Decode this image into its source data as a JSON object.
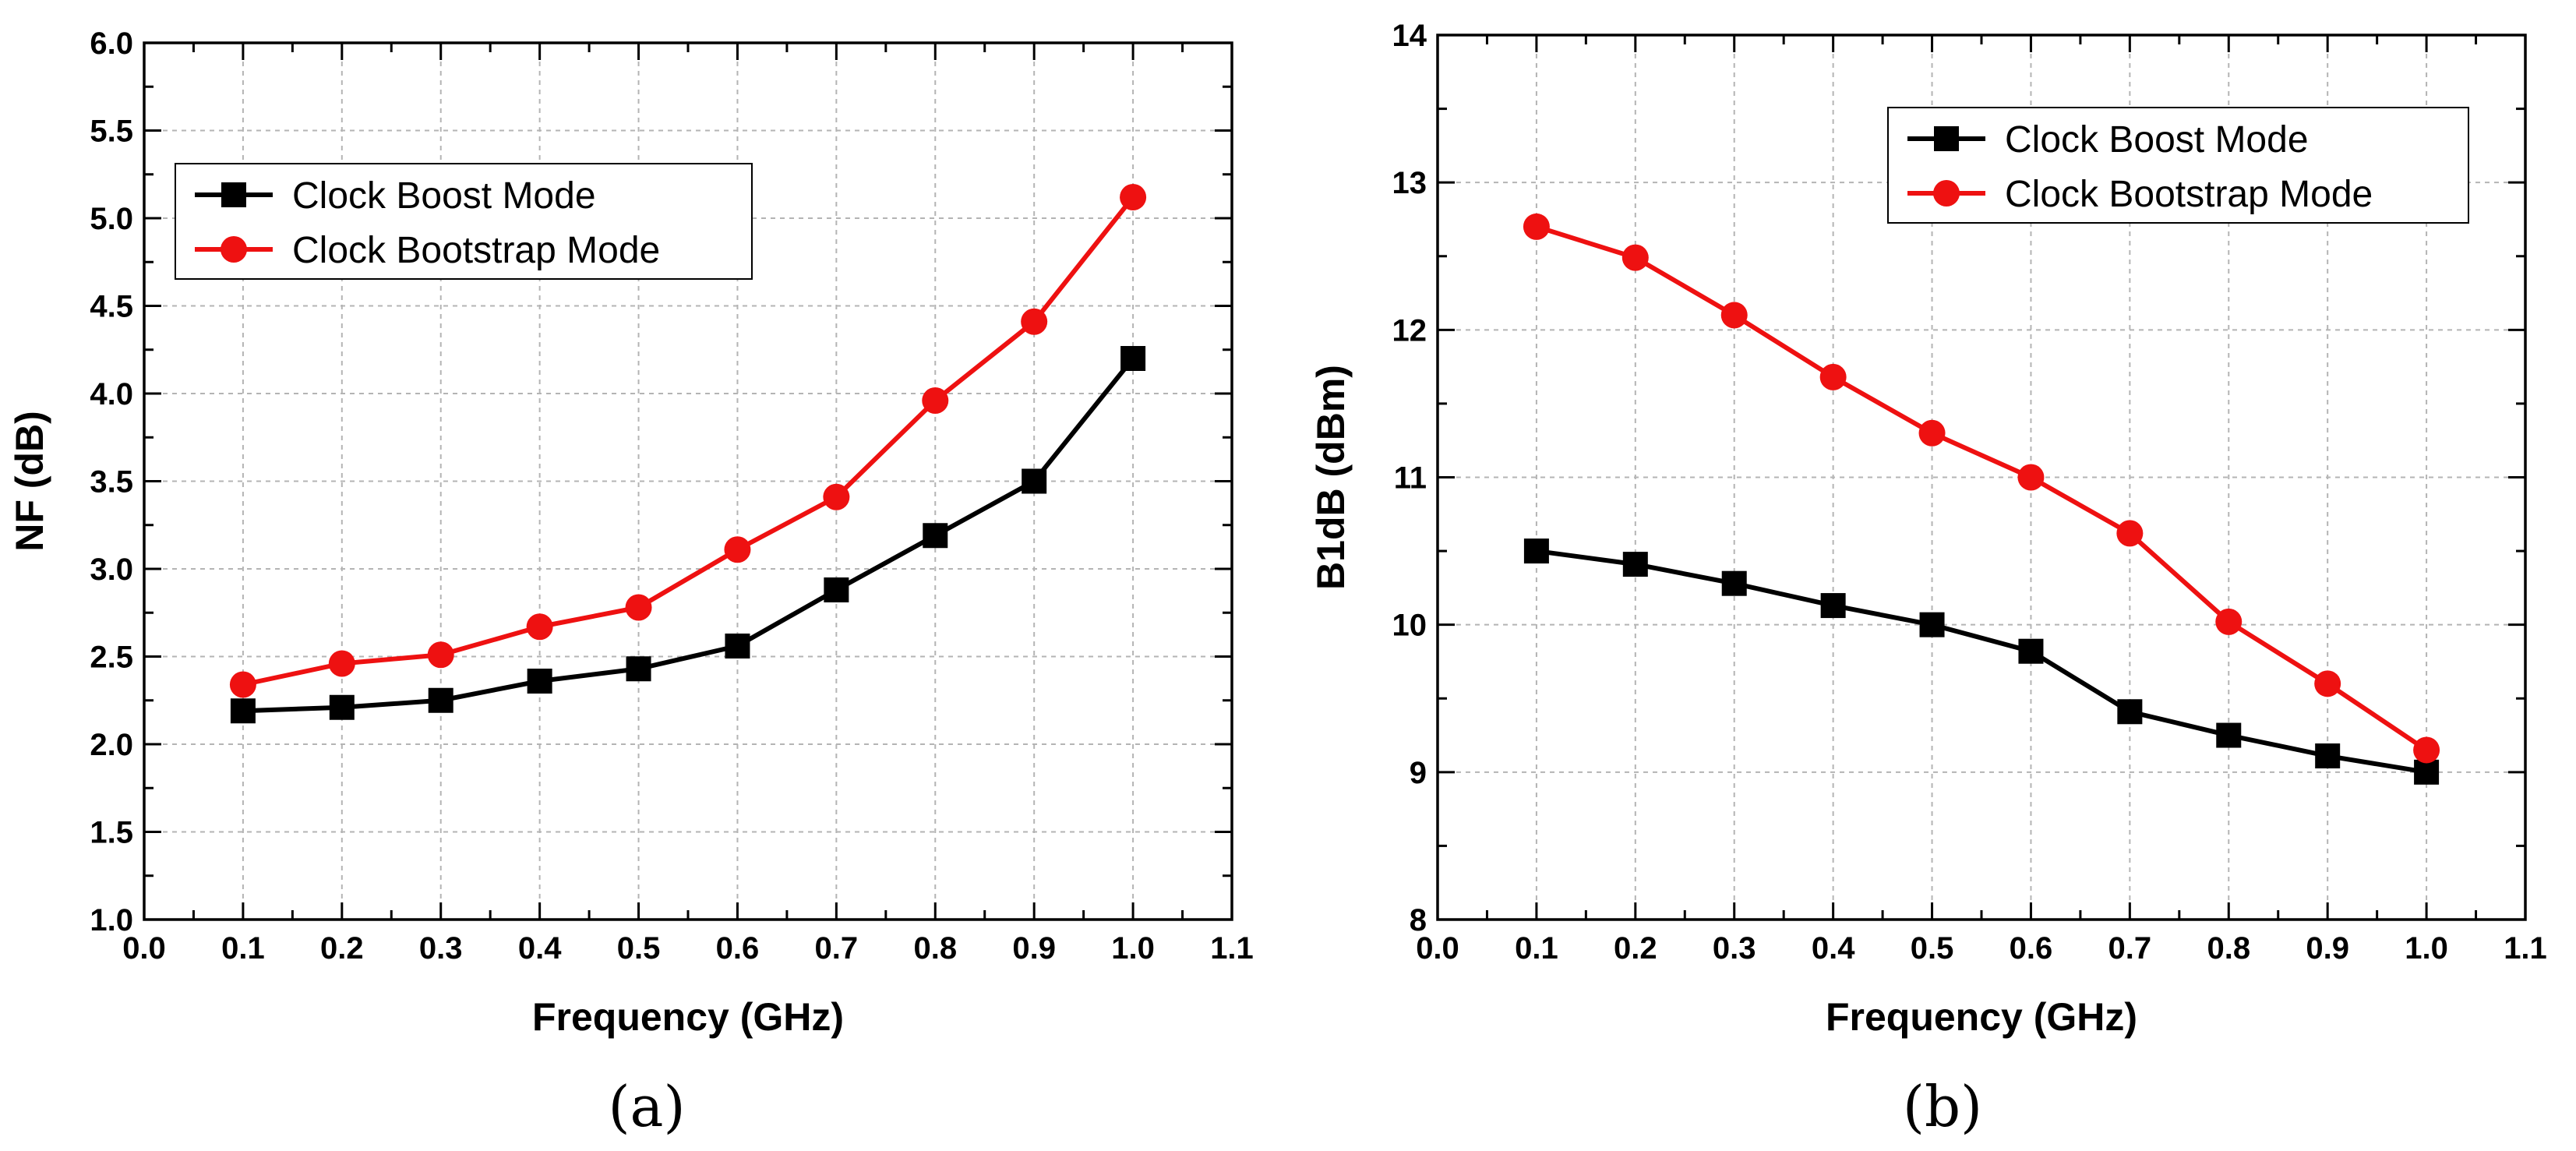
{
  "colors": {
    "boost": "#000000",
    "bootstrap": "#ee1111",
    "grid": "#b4b4b4"
  },
  "chart_data": [
    {
      "type": "line",
      "panel_label": "(a)",
      "xlabel": "Frequency (GHz)",
      "ylabel": "NF (dB)",
      "xlim": [
        0.0,
        1.1
      ],
      "ylim": [
        1.0,
        6.0
      ],
      "xticks": [
        "0.0",
        "0.1",
        "0.2",
        "0.3",
        "0.4",
        "0.5",
        "0.6",
        "0.7",
        "0.8",
        "0.9",
        "1.0",
        "1.1"
      ],
      "yticks": [
        "1.0",
        "1.5",
        "2.0",
        "2.5",
        "3.0",
        "3.5",
        "4.0",
        "4.5",
        "5.0",
        "5.5",
        "6.0"
      ],
      "grid": true,
      "legend_position": "upper-left",
      "x": [
        0.1,
        0.2,
        0.3,
        0.4,
        0.5,
        0.6,
        0.7,
        0.8,
        0.9,
        1.0
      ],
      "series": [
        {
          "name": "Clock Boost Mode",
          "marker": "square",
          "color": "#000000",
          "values": [
            2.19,
            2.21,
            2.25,
            2.36,
            2.43,
            2.56,
            2.88,
            3.19,
            3.5,
            4.2
          ]
        },
        {
          "name": "Clock Bootstrap Mode",
          "marker": "circle",
          "color": "#ee1111",
          "values": [
            2.34,
            2.46,
            2.51,
            2.67,
            2.78,
            3.11,
            3.41,
            3.96,
            4.41,
            5.12
          ]
        }
      ]
    },
    {
      "type": "line",
      "panel_label": "(b)",
      "xlabel": "Frequency (GHz)",
      "ylabel": "B1dB (dBm)",
      "xlim": [
        0.0,
        1.1
      ],
      "ylim": [
        8,
        14
      ],
      "xticks": [
        "0.0",
        "0.1",
        "0.2",
        "0.3",
        "0.4",
        "0.5",
        "0.6",
        "0.7",
        "0.8",
        "0.9",
        "1.0",
        "1.1"
      ],
      "yticks": [
        "8",
        "9",
        "10",
        "11",
        "12",
        "13",
        "14"
      ],
      "grid": true,
      "legend_position": "upper-right",
      "x": [
        0.1,
        0.2,
        0.3,
        0.4,
        0.5,
        0.6,
        0.7,
        0.8,
        0.9,
        1.0
      ],
      "series": [
        {
          "name": "Clock Boost Mode",
          "marker": "square",
          "color": "#000000",
          "values": [
            10.5,
            10.41,
            10.28,
            10.13,
            10.0,
            9.82,
            9.41,
            9.25,
            9.11,
            9.0
          ]
        },
        {
          "name": "Clock Bootstrap Mode",
          "marker": "circle",
          "color": "#ee1111",
          "values": [
            12.7,
            12.49,
            12.1,
            11.68,
            11.3,
            11.0,
            10.62,
            10.02,
            9.6,
            9.15
          ]
        }
      ]
    }
  ]
}
